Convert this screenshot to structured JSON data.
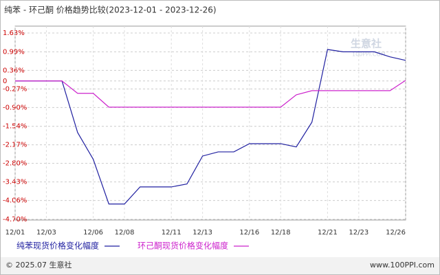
{
  "chart_data": {
    "type": "line",
    "title": "纯苯 - 环己酮 价格趋势比较(2023-12-01 - 2023-12-26)",
    "categories": [
      "12/01",
      null,
      "12/03",
      null,
      null,
      "12/06",
      null,
      "12/08",
      null,
      null,
      "12/11",
      null,
      "12/13",
      null,
      null,
      "12/16",
      null,
      "12/18",
      null,
      null,
      "12/21",
      null,
      "12/23",
      null,
      null,
      "12/26"
    ],
    "series": [
      {
        "name": "纯苯现货价格变化幅度",
        "color": "#1f1fa0",
        "values": [
          0,
          0,
          0,
          0,
          -1.75,
          -2.66,
          -4.18,
          -4.18,
          -3.6,
          -3.6,
          -3.6,
          -3.5,
          -2.55,
          -2.41,
          -2.41,
          -2.13,
          -2.13,
          -2.13,
          -2.24,
          -1.4,
          1.07,
          0.99,
          0.99,
          0.99,
          0.82,
          0.7
        ]
      },
      {
        "name": "环己酮现货价格变化幅度",
        "color": "#cc22cc",
        "values": [
          0,
          0,
          0,
          0,
          -0.42,
          -0.42,
          -0.89,
          -0.89,
          -0.89,
          -0.89,
          -0.89,
          -0.89,
          -0.89,
          -0.89,
          -0.89,
          -0.89,
          -0.89,
          -0.89,
          -0.47,
          -0.33,
          -0.33,
          -0.33,
          -0.33,
          -0.33,
          -0.33,
          0.02
        ]
      }
    ],
    "ylim": [
      -4.7,
      1.63
    ],
    "yticks": [
      {
        "value": 1.63,
        "label": "1.63%"
      },
      {
        "value": 0.99,
        "label": "0.99%"
      },
      {
        "value": 0.36,
        "label": "0.36%"
      },
      0,
      {
        "value": -0.27,
        "label": "-0.27%"
      },
      {
        "value": -0.9,
        "label": "-0.90%"
      },
      {
        "value": -1.54,
        "label": "-1.54%"
      },
      {
        "value": -2.17,
        "label": "-2.17%"
      },
      {
        "value": -2.8,
        "label": "-2.80%"
      },
      {
        "value": -3.43,
        "label": "-3.43%"
      },
      {
        "value": -4.06,
        "label": "-4.06%"
      },
      {
        "value": -4.7,
        "label": "-4.70%"
      }
    ],
    "grid": true,
    "watermark": {
      "name": "生意社",
      "site": "100PPI.COM"
    },
    "footer": {
      "copyright": "© 2025.07 生意社",
      "url": "www.100PPI.com"
    }
  }
}
